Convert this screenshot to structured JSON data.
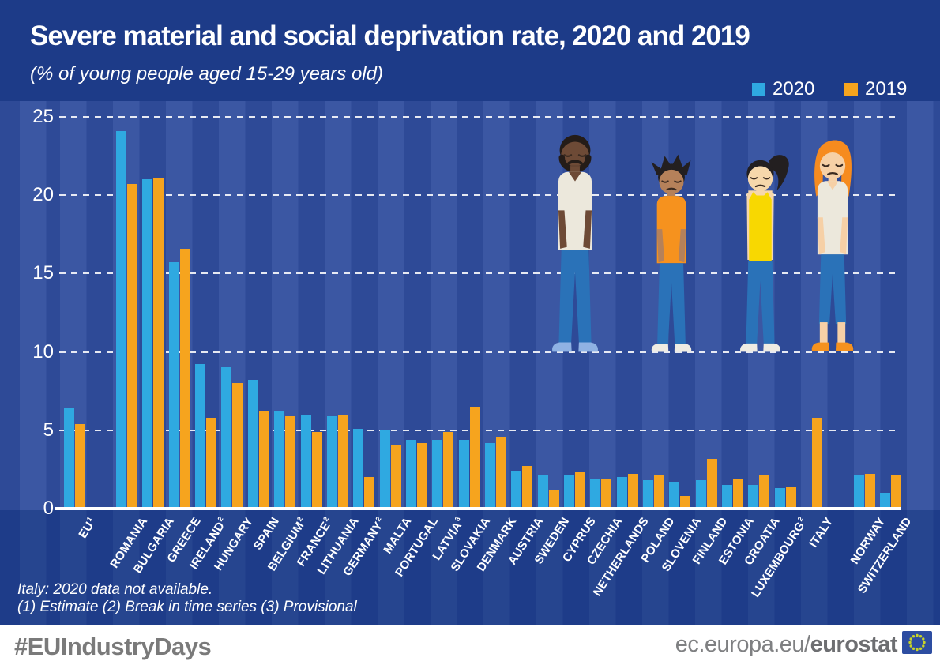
{
  "header": {
    "title": "Severe material and social deprivation rate, 2020 and 2019",
    "subtitle": "(% of young people aged 15-29 years old)"
  },
  "legend": {
    "items": [
      {
        "label": "2020",
        "color": "#2fa9e1"
      },
      {
        "label": "2019",
        "color": "#f6a41e"
      }
    ]
  },
  "chart_data": {
    "type": "bar",
    "title": "Severe material and social deprivation rate, 2020 and 2019",
    "unit": "(% of young people aged 15-29 years old)",
    "ylim": [
      0,
      25
    ],
    "y_ticks": [
      0,
      5,
      10,
      15,
      20,
      25
    ],
    "grid": "horizontal-dashed-white",
    "legend_position": "top-right",
    "categories": [
      {
        "label": "EU",
        "sup": "1",
        "group": "eu"
      },
      {
        "label": "ROMANIA",
        "sup": "",
        "group": "member"
      },
      {
        "label": "BULGARIA",
        "sup": "",
        "group": "member"
      },
      {
        "label": "GREECE",
        "sup": "",
        "group": "member"
      },
      {
        "label": "IRELAND",
        "sup": "2",
        "group": "member"
      },
      {
        "label": "HUNGARY",
        "sup": "",
        "group": "member"
      },
      {
        "label": "SPAIN",
        "sup": "",
        "group": "member"
      },
      {
        "label": "BELGIUM",
        "sup": "2",
        "group": "member"
      },
      {
        "label": "FRANCE",
        "sup": "2",
        "group": "member"
      },
      {
        "label": "LITHUANIA",
        "sup": "",
        "group": "member"
      },
      {
        "label": "GERMANY",
        "sup": "2",
        "group": "member"
      },
      {
        "label": "MALTA",
        "sup": "",
        "group": "member"
      },
      {
        "label": "PORTUGAL",
        "sup": "",
        "group": "member"
      },
      {
        "label": "LATVIA",
        "sup": "3",
        "group": "member"
      },
      {
        "label": "SLOVAKIA",
        "sup": "",
        "group": "member"
      },
      {
        "label": "DENMARK",
        "sup": "",
        "group": "member"
      },
      {
        "label": "AUSTRIA",
        "sup": "",
        "group": "member"
      },
      {
        "label": "SWEDEN",
        "sup": "",
        "group": "member"
      },
      {
        "label": "CYPRUS",
        "sup": "",
        "group": "member"
      },
      {
        "label": "CZECHIA",
        "sup": "",
        "group": "member"
      },
      {
        "label": "NETHERLANDS",
        "sup": "",
        "group": "member"
      },
      {
        "label": "POLAND",
        "sup": "",
        "group": "member"
      },
      {
        "label": "SLOVENIA",
        "sup": "",
        "group": "member"
      },
      {
        "label": "FINLAND",
        "sup": "",
        "group": "member"
      },
      {
        "label": "ESTONIA",
        "sup": "",
        "group": "member"
      },
      {
        "label": "CROATIA",
        "sup": "",
        "group": "member"
      },
      {
        "label": "LUXEMBOURG",
        "sup": "2",
        "group": "member"
      },
      {
        "label": "ITALY",
        "sup": "",
        "group": "member"
      },
      {
        "label": "NORWAY",
        "sup": "",
        "group": "efta"
      },
      {
        "label": "SWITZERLAND",
        "sup": "",
        "group": "efta"
      }
    ],
    "series": [
      {
        "name": "2020",
        "color": "#2fa9e1",
        "values": [
          6.4,
          24.1,
          21.0,
          15.7,
          9.2,
          9.0,
          8.2,
          6.2,
          6.0,
          5.9,
          5.1,
          5.0,
          4.4,
          4.4,
          4.4,
          4.2,
          2.4,
          2.1,
          2.1,
          1.9,
          2.0,
          1.8,
          1.7,
          1.8,
          1.5,
          1.5,
          1.3,
          null,
          2.1,
          1.0
        ]
      },
      {
        "name": "2019",
        "color": "#f6a41e",
        "values": [
          5.4,
          20.7,
          21.1,
          16.6,
          5.8,
          8.0,
          6.2,
          5.9,
          4.9,
          6.0,
          2.0,
          4.1,
          4.2,
          4.9,
          6.5,
          4.6,
          2.7,
          1.2,
          2.3,
          1.9,
          2.2,
          2.1,
          0.8,
          3.2,
          1.9,
          2.1,
          1.4,
          5.8,
          2.2,
          2.1
        ]
      }
    ],
    "annotations": [
      "Italy: 2020 data not available.",
      "(1) Estimate (2) Break in time series (3) Provisional"
    ]
  },
  "notes": {
    "line1": "Italy: 2020 data not available.",
    "line2": "(1) Estimate (2) Break in time series (3) Provisional"
  },
  "footer": {
    "hashtag": "#EUIndustryDays",
    "url_regular": "ec.europa.eu/",
    "url_bold": "eurostat",
    "flag": "eu-flag"
  },
  "colors": {
    "background": "#1d3b88",
    "stripe_light": "#3b57a3",
    "stripe_dark": "#2e4a97",
    "bar_2020": "#2fa9e1",
    "bar_2019": "#f6a41e",
    "axis_white": "#ffffff",
    "footer_text_gray": "#7a7a7a",
    "flag_blue": "#2d4da1",
    "flag_stars": "#c8d429"
  },
  "illustration": {
    "people": [
      {
        "name": "young-man-beard",
        "skin": "#6d4a36",
        "hair": "#241c18",
        "shirt": "#ece8dc",
        "pants": "#2a72b8",
        "shoes": "#8fb2e3",
        "style": "short-beard",
        "neckline": "v"
      },
      {
        "name": "teen-boy-spiky-hair",
        "skin": "#b5815a",
        "hair": "#231f20",
        "shirt": "#f6921e",
        "pants": "#2a72b8",
        "shoes": "#efece3",
        "style": "spiky",
        "neckline": "crew"
      },
      {
        "name": "girl-ponytail",
        "skin": "#f6d7ab",
        "hair": "#231f20",
        "shirt": "#f8d801",
        "pants": "#2a72b8",
        "shoes": "#efece3",
        "style": "ponytail",
        "neckline": "tank"
      },
      {
        "name": "young-woman-orange-hair",
        "skin": "#f6d0a6",
        "hair": "#f68b1f",
        "shirt": "#ece8dc",
        "pants": "#2a72b8",
        "shoes": "#f6921e",
        "style": "long",
        "neckline": "v"
      }
    ]
  }
}
